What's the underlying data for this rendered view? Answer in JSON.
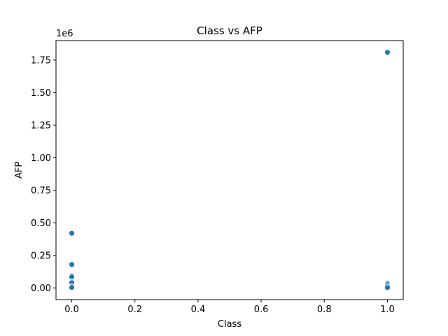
{
  "chart_data": {
    "type": "scatter",
    "title": "Class vs AFP",
    "xlabel": "Class",
    "ylabel": "AFP",
    "offset_label": "1e6",
    "xlim": [
      -0.05,
      1.05
    ],
    "ylim": [
      -0.09,
      1.9
    ],
    "x_ticks": [
      0.0,
      0.2,
      0.4,
      0.6,
      0.8,
      1.0
    ],
    "x_tick_labels": [
      "0.0",
      "0.2",
      "0.4",
      "0.6",
      "0.8",
      "1.0"
    ],
    "y_ticks": [
      0.0,
      0.25,
      0.5,
      0.75,
      1.0,
      1.25,
      1.5,
      1.75
    ],
    "y_tick_labels": [
      "0.00",
      "0.25",
      "0.50",
      "0.75",
      "1.00",
      "1.25",
      "1.50",
      "1.75"
    ],
    "grid": false,
    "marker_color": "#1f77b4",
    "points": [
      {
        "x": 0,
        "y": 0.42
      },
      {
        "x": 0,
        "y": 0.18
      },
      {
        "x": 0,
        "y": 0.092
      },
      {
        "x": 0,
        "y": 0.085
      },
      {
        "x": 0,
        "y": 0.045
      },
      {
        "x": 0,
        "y": 0.04
      },
      {
        "x": 0,
        "y": 0.01
      },
      {
        "x": 0,
        "y": 0.004
      },
      {
        "x": 1,
        "y": 1.81
      },
      {
        "x": 1,
        "y": 0.035
      },
      {
        "x": 1,
        "y": 0.025
      },
      {
        "x": 1,
        "y": 0.012
      },
      {
        "x": 1,
        "y": 0.003
      }
    ]
  }
}
